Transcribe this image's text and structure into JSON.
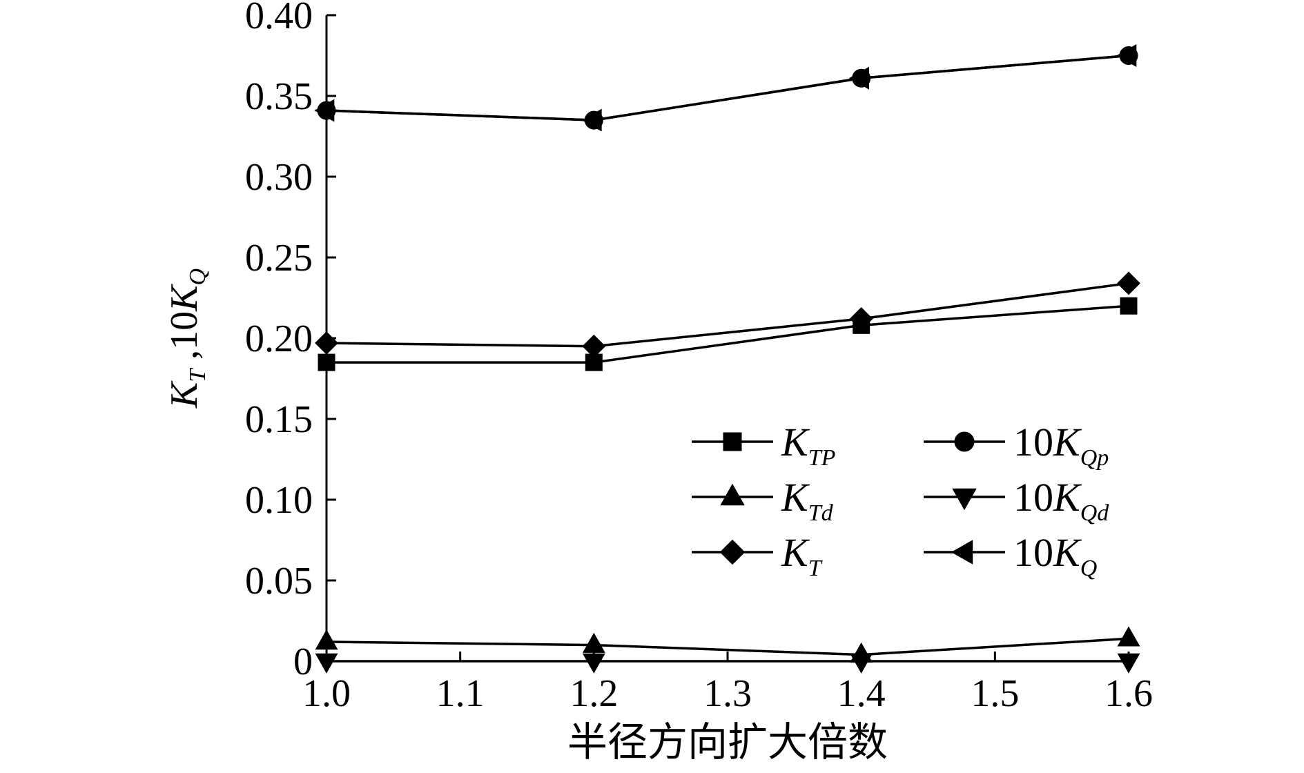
{
  "chart_data": {
    "type": "line",
    "xlabel": "半径方向扩大倍数",
    "ylabel": {
      "main1": "K",
      "sub1": "T",
      "sep": " ,10",
      "main2": "K",
      "sub2": "Q"
    },
    "xlim": [
      1.0,
      1.6
    ],
    "ylim": [
      0,
      0.4
    ],
    "x_ticks": [
      1.0,
      1.1,
      1.2,
      1.3,
      1.4,
      1.5,
      1.6
    ],
    "x_tick_labels": [
      "1.0",
      "1.1",
      "1.2",
      "1.3",
      "1.4",
      "1.5",
      "1.6"
    ],
    "y_ticks": [
      0,
      0.05,
      0.1,
      0.15,
      0.2,
      0.25,
      0.3,
      0.35,
      0.4
    ],
    "y_tick_labels": [
      "0",
      "0.05",
      "0.10",
      "0.15",
      "0.20",
      "0.25",
      "0.30",
      "0.35",
      "0.40"
    ],
    "grid": false,
    "legend_position": "center-right",
    "x": [
      1.0,
      1.2,
      1.4,
      1.6
    ],
    "series": [
      {
        "prefix": "",
        "main": "K",
        "sub": "TP",
        "marker": "square",
        "values": [
          0.185,
          0.185,
          0.208,
          0.22
        ]
      },
      {
        "prefix": "10",
        "main": "K",
        "sub": "Qp",
        "marker": "circle",
        "values": [
          0.341,
          0.335,
          0.361,
          0.375
        ]
      },
      {
        "prefix": "",
        "main": "K",
        "sub": "Td",
        "marker": "triangle-up",
        "values": [
          0.012,
          0.01,
          0.004,
          0.014
        ]
      },
      {
        "prefix": "10",
        "main": "K",
        "sub": "Qd",
        "marker": "triangle-down",
        "values": [
          0.0,
          0.0,
          0.0,
          0.0
        ]
      },
      {
        "prefix": "",
        "main": "K",
        "sub": "T",
        "marker": "diamond",
        "values": [
          0.197,
          0.195,
          0.212,
          0.234
        ]
      },
      {
        "prefix": "10",
        "main": "K",
        "sub": "Q",
        "marker": "triangle-left",
        "values": [
          0.341,
          0.335,
          0.361,
          0.375
        ]
      }
    ]
  }
}
